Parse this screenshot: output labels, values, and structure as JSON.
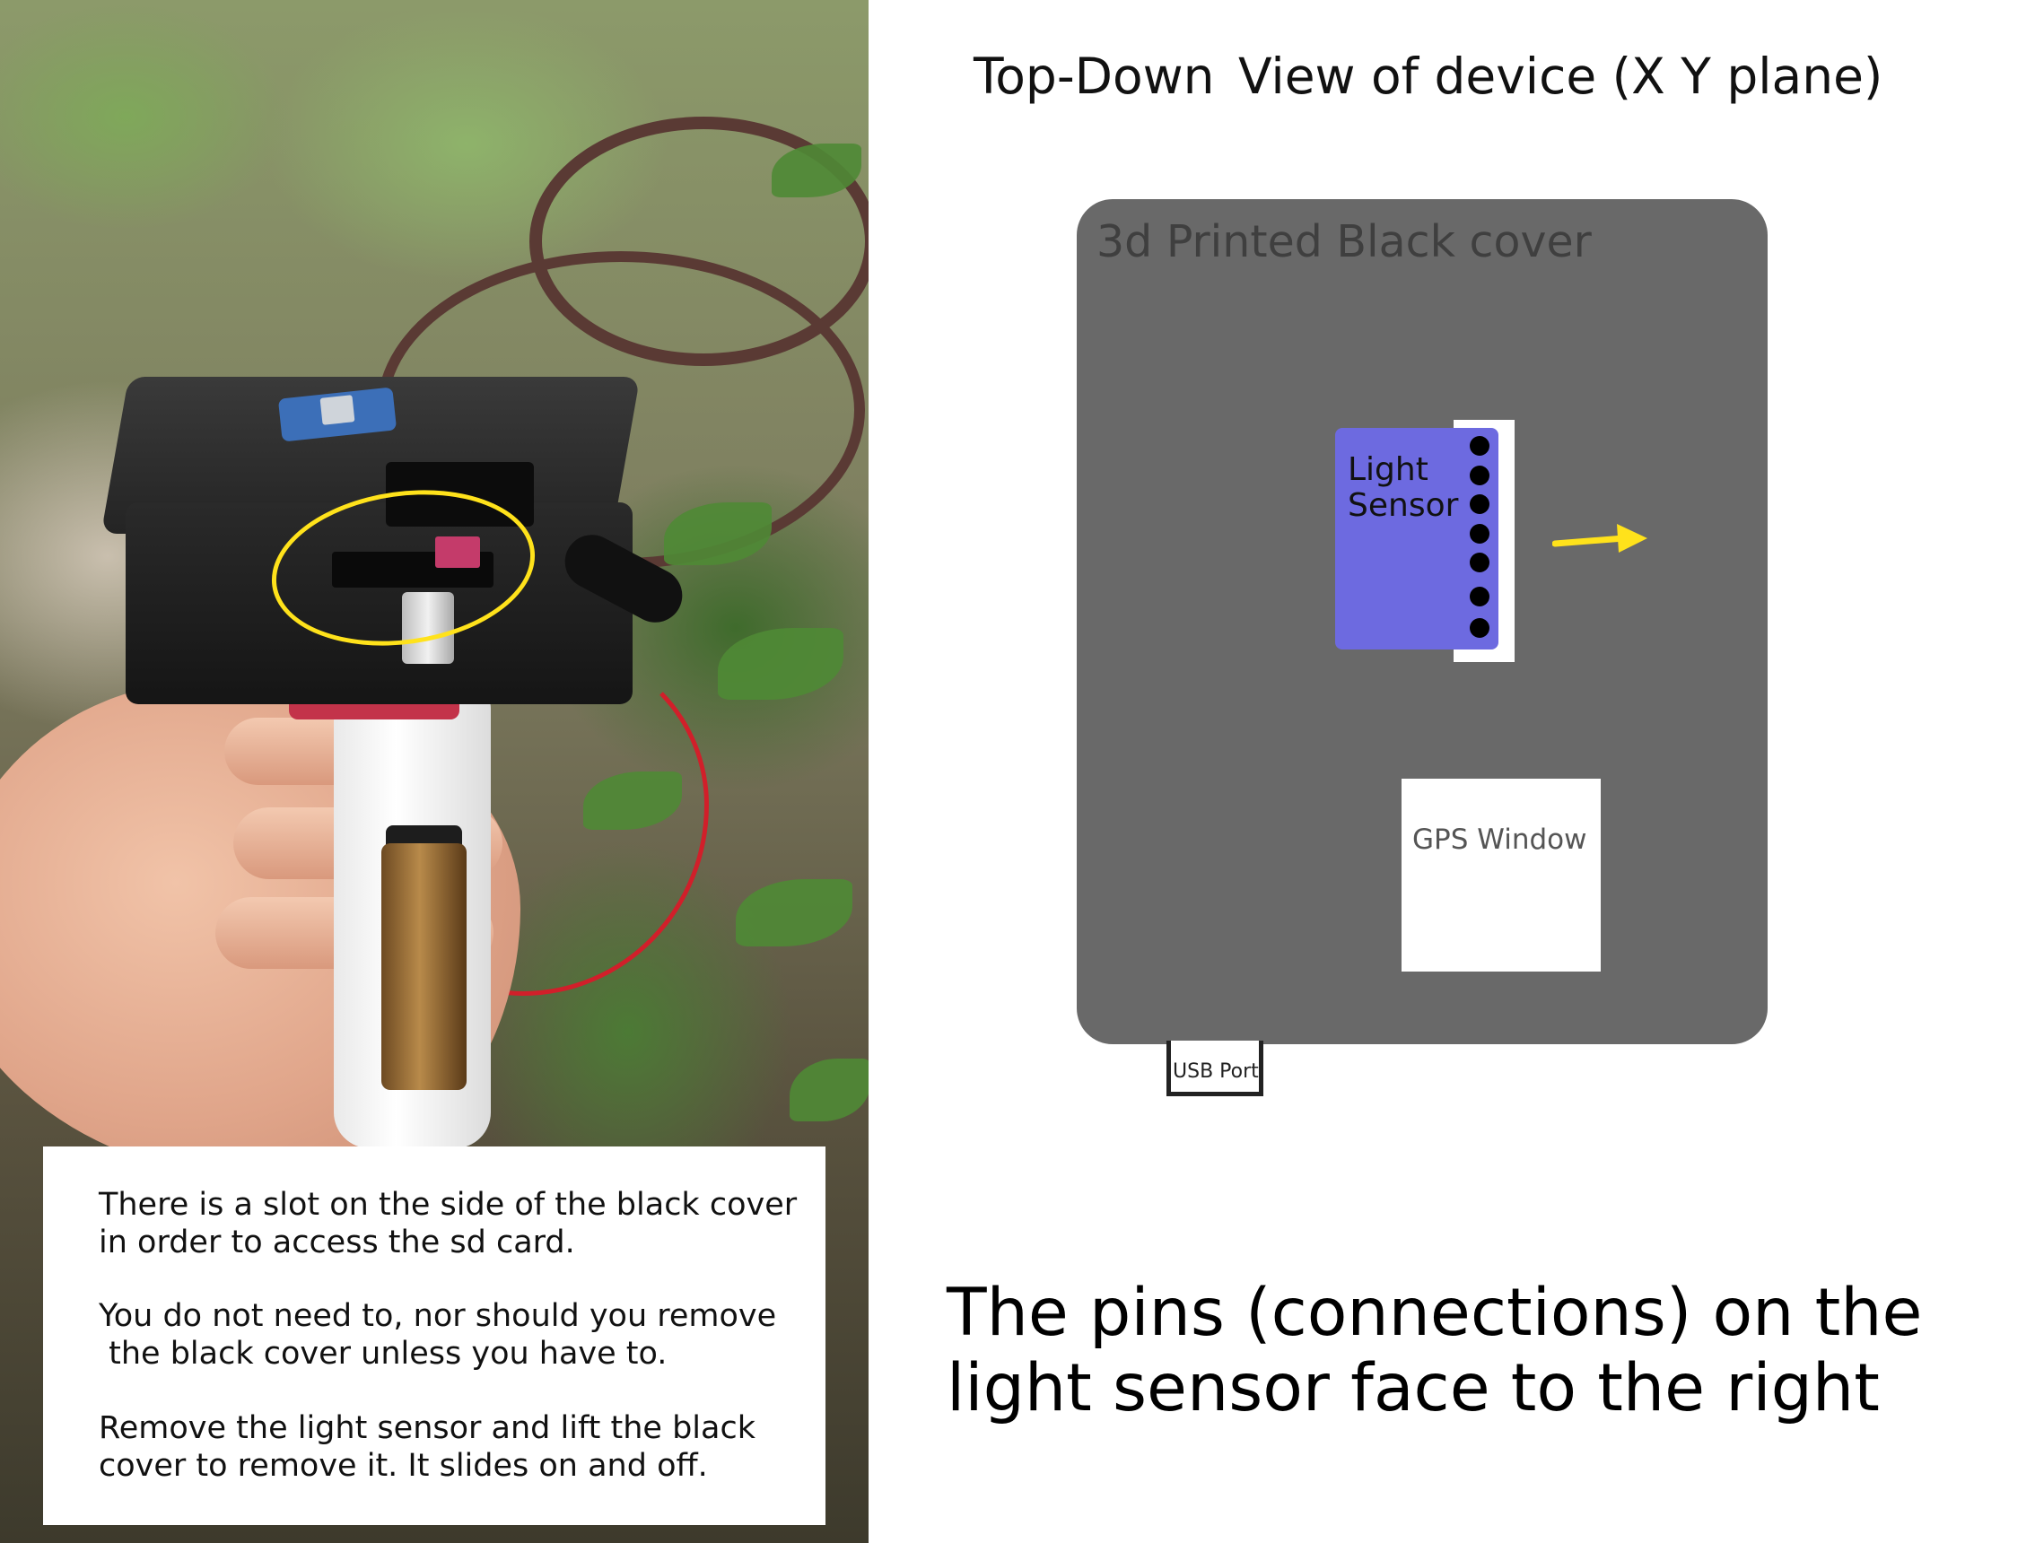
{
  "diagram": {
    "title_left": "Top-Down",
    "title_right": "View of device (X Y plane)",
    "cover_label": "3d Printed Black cover",
    "sensor_label_line1": "Light",
    "sensor_label_line2": "Sensor",
    "sensor_pin_count": 7,
    "gps_window_label": "GPS Window",
    "usb_port_label": "USB Port",
    "caption_line1": "The pins (connections) on the",
    "caption_line2": "light sensor face to the right",
    "colors": {
      "cover": "#696969",
      "sensor": "#6d6ae0",
      "arrow": "#ffe21b",
      "highlight_ring": "#ffe21b"
    }
  },
  "note": {
    "line1": "There is a slot on the side of the black cover",
    "line2": "in order to access the sd card.",
    "line3": "You do not need to, nor should you remove",
    "line4": " the black cover unless you have to.",
    "line5": "Remove the light sensor and lift the black",
    "line6": "cover to remove it. It slides on and off."
  }
}
